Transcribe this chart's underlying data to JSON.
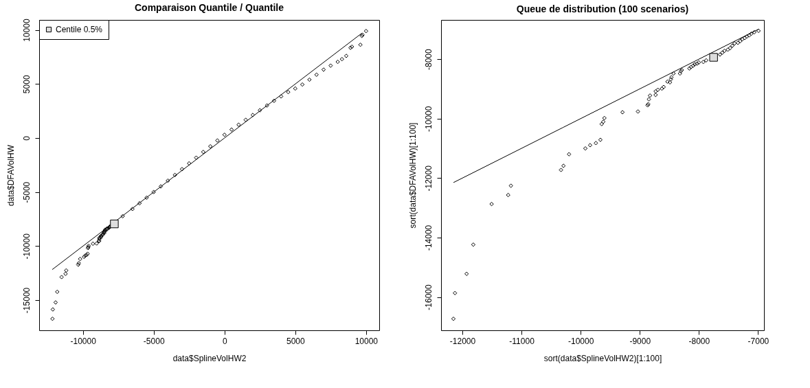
{
  "chart_data": [
    {
      "type": "scatter",
      "title": "Comparaison Quantile / Quantile",
      "xlabel": "data$SplineVolHW2",
      "ylabel": "data$DFAVolHW",
      "xlim": [
        -13090,
        10930
      ],
      "ylim": [
        -17800,
        10930
      ],
      "xticks": [
        -10000,
        -5000,
        0,
        5000,
        10000
      ],
      "yticks": [
        -15000,
        -10000,
        -5000,
        0,
        5000,
        10000
      ],
      "grid": false,
      "legend": "top left",
      "series": [
        {
          "type": "line",
          "color": "#000000",
          "marker": "none",
          "line_style": "solid",
          "x": [
            -12170,
            0,
            9700
          ],
          "values": [
            -12180,
            0,
            9700
          ]
        },
        {
          "type": "scatter",
          "color": "#000000",
          "marker": "diamond",
          "x": [
            -12151,
            -12125,
            -11928,
            -11815,
            -11505,
            -11225,
            -11179,
            -10332,
            -10290,
            -10196,
            -9920,
            -9840,
            -9742,
            -9666,
            -9644,
            -9617,
            -9598,
            -9292,
            -9031,
            -8868,
            -8857,
            -8846,
            -8827,
            -8732,
            -8732,
            -8694,
            -8626,
            -8596,
            -8532,
            -8490,
            -8475,
            -8464,
            -8429,
            -8320,
            -8305,
            -8290,
            -8161,
            -8134,
            -8097,
            -8070,
            -7189,
            -6500,
            -6000,
            -5500,
            -5000,
            -4500,
            -4000,
            -3500,
            -3000,
            -2500,
            -2000,
            -1500,
            -1000,
            -500,
            0,
            500,
            1000,
            1500,
            2000,
            2500,
            3000,
            3500,
            4000,
            4500,
            5000,
            5500,
            6000,
            6500,
            7000,
            7500,
            8000,
            8300,
            8600,
            8900,
            9000,
            9600,
            9700,
            9750,
            10000
          ],
          "values": [
            -16732,
            -15867,
            -15220,
            -14238,
            -12873,
            -12569,
            -12257,
            -11727,
            -11587,
            -11197,
            -11002,
            -10893,
            -10823,
            -10713,
            -10183,
            -10105,
            -9981,
            -9785,
            -9762,
            -9552,
            -9513,
            -9349,
            -9224,
            -9201,
            -9084,
            -9029,
            -8990,
            -8936,
            -8756,
            -8780,
            -8678,
            -8608,
            -8483,
            -8483,
            -8405,
            -8366,
            -8312,
            -8265,
            -8218,
            -8172,
            -7236,
            -6570,
            -6040,
            -5520,
            -5000,
            -4480,
            -3950,
            -3420,
            -2880,
            -2350,
            -1820,
            -1290,
            -770,
            -230,
            300,
            780,
            1230,
            1680,
            2130,
            2570,
            3010,
            3440,
            3850,
            4250,
            4580,
            4950,
            5400,
            5860,
            6330,
            6700,
            7050,
            7300,
            7600,
            8350,
            8450,
            8630,
            9450,
            9550,
            9900
          ]
        },
        {
          "type": "scatter",
          "name": "Centile 0.5%",
          "color": "#dddddd",
          "marker": "square",
          "x": [
            -7780
          ],
          "values": [
            -7950
          ]
        }
      ]
    },
    {
      "type": "scatter",
      "title": "Queue de distribution (100 scenarios)",
      "xlabel": "sort(data$SplineVolHW2)[1:100]",
      "ylabel": "sort(data$DFAVolHW)[1:100]",
      "xlim": [
        -12360,
        -6900
      ],
      "ylim": [
        -17120,
        -6680
      ],
      "xticks": [
        -12000,
        -11000,
        -10000,
        -9000,
        -8000,
        -7000
      ],
      "yticks": [
        -16000,
        -14000,
        -12000,
        -10000,
        -8000
      ],
      "grid": false,
      "legend": "top left",
      "series": [
        {
          "type": "line",
          "color": "#000000",
          "marker": "none",
          "line_style": "solid",
          "x": [
            -12150,
            -10300,
            -9890,
            -9025,
            -8430,
            -7740,
            -6990
          ],
          "values": [
            -12150,
            -10300,
            -9890,
            -9025,
            -8430,
            -7740,
            -6990
          ]
        },
        {
          "type": "scatter",
          "color": "#000000",
          "marker": "diamond",
          "x": [
            -12151,
            -12125,
            -11928,
            -11815,
            -11505,
            -11225,
            -11179,
            -10332,
            -10290,
            -10196,
            -9920,
            -9840,
            -9742,
            -9666,
            -9644,
            -9617,
            -9598,
            -9292,
            -9031,
            -8868,
            -8857,
            -8846,
            -8827,
            -8732,
            -8732,
            -8694,
            -8626,
            -8596,
            -8532,
            -8490,
            -8475,
            -8464,
            -8429,
            -8320,
            -8305,
            -8290,
            -8161,
            -8134,
            -8097,
            -8070,
            -8032,
            -8002,
            -7926,
            -7877,
            -7643,
            -7605,
            -7567,
            -7510,
            -7472,
            -7435,
            -7397,
            -7340,
            -7302,
            -7265,
            -7227,
            -7189,
            -7151,
            -7113,
            -7064,
            -6992
          ],
          "values": [
            -16732,
            -15867,
            -15220,
            -14238,
            -12873,
            -12569,
            -12257,
            -11727,
            -11587,
            -11197,
            -11002,
            -10893,
            -10823,
            -10713,
            -10183,
            -10105,
            -9981,
            -9785,
            -9762,
            -9552,
            -9513,
            -9349,
            -9224,
            -9201,
            -9084,
            -9029,
            -8990,
            -8936,
            -8756,
            -8780,
            -8678,
            -8608,
            -8483,
            -8483,
            -8405,
            -8366,
            -8312,
            -8265,
            -8218,
            -8172,
            -8150,
            -8109,
            -8094,
            -8039,
            -7844,
            -7782,
            -7719,
            -7680,
            -7626,
            -7548,
            -7470,
            -7450,
            -7392,
            -7329,
            -7290,
            -7236,
            -7200,
            -7142,
            -7095,
            -7048
          ]
        },
        {
          "type": "scatter",
          "name": "Centile 0.5%",
          "color": "#dddddd",
          "marker": "square",
          "x": [
            -7752
          ],
          "values": [
            -7938
          ]
        }
      ]
    }
  ]
}
